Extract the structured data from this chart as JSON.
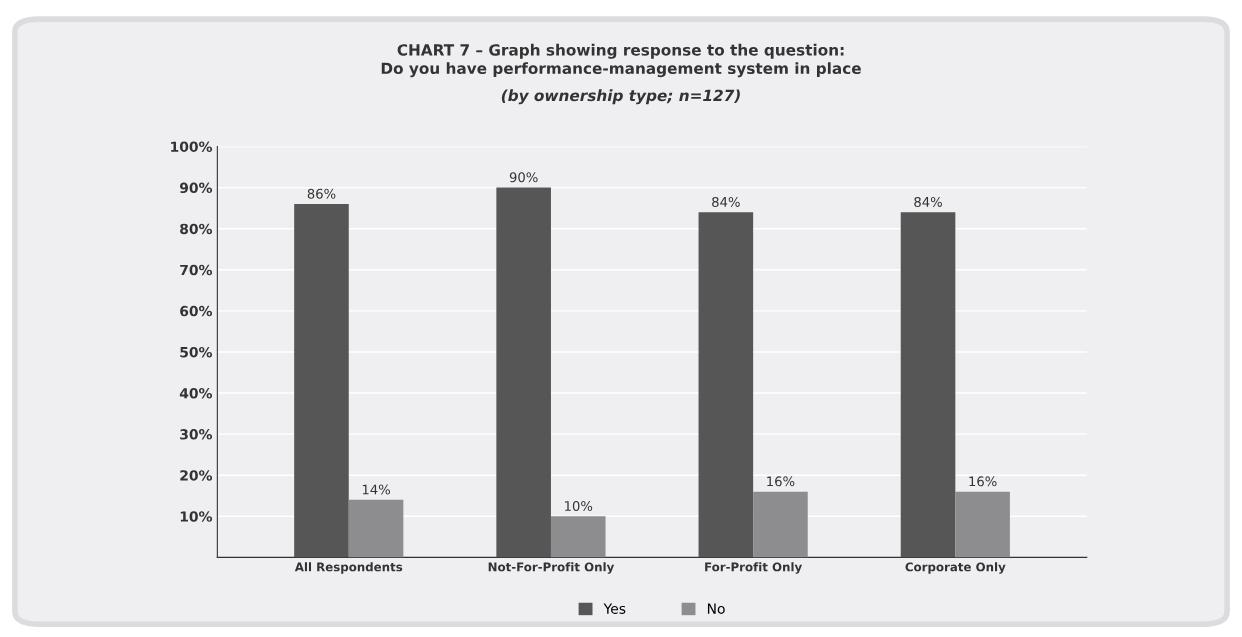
{
  "chart_data": {
    "type": "bar",
    "title": "CHART 7 – Graph showing response to the question:\nDo you have performance-management system in place",
    "subtitle": "(by ownership type; n=127)",
    "categories": [
      "All Respondents",
      "Not-For-Profit Only",
      "For-Profit Only",
      "Corporate Only"
    ],
    "series": [
      {
        "name": "Yes",
        "color": "#565657",
        "values": [
          86,
          90,
          84,
          84
        ],
        "value_labels": [
          "86%",
          "90%",
          "84%",
          "84%"
        ]
      },
      {
        "name": "No",
        "color": "#8d8d8f",
        "values": [
          14,
          10,
          16,
          16
        ],
        "value_labels": [
          "14%",
          "10%",
          "16%",
          "16%"
        ]
      }
    ],
    "ylim": [
      0,
      100
    ],
    "yticks": [
      {
        "value": 10,
        "label": "10%"
      },
      {
        "value": 20,
        "label": "20%"
      },
      {
        "value": 30,
        "label": "30%"
      },
      {
        "value": 40,
        "label": "40%"
      },
      {
        "value": 50,
        "label": "50%"
      },
      {
        "value": 60,
        "label": "60%"
      },
      {
        "value": 70,
        "label": "70%"
      },
      {
        "value": 80,
        "label": "80%"
      },
      {
        "value": 90,
        "label": "90%"
      },
      {
        "value": 100,
        "label": "100%"
      }
    ],
    "grid": "y",
    "legend": "bottom"
  }
}
